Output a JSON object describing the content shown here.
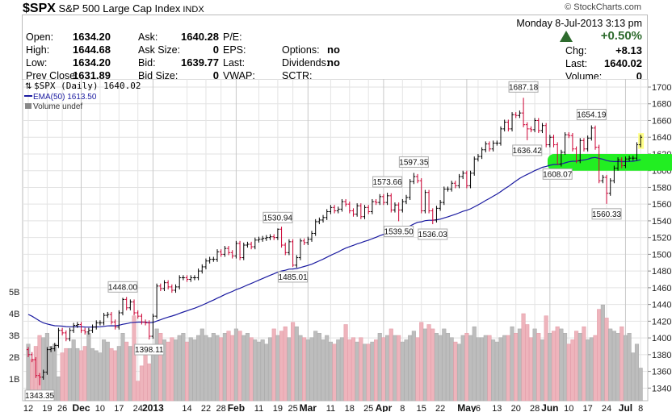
{
  "header": {
    "symbol": "$SPX",
    "name": "S&P 500 Large Cap Index",
    "exchange": "INDX",
    "copyright": "© StockCharts.com",
    "date": "Monday  8-Jul-2013  3:13 pm",
    "pct_change": "+0.50%",
    "fields": {
      "open": {
        "label": "Open:",
        "value": "1634.20"
      },
      "high": {
        "label": "High:",
        "value": "1644.68"
      },
      "low": {
        "label": "Low:",
        "value": "1634.20"
      },
      "prev_close": {
        "label": "Prev Close:",
        "value": "1631.89"
      },
      "ask": {
        "label": "Ask:",
        "value": "1640.28"
      },
      "ask_size": {
        "label": "Ask Size:",
        "value": "0"
      },
      "bid": {
        "label": "Bid:",
        "value": "1639.77"
      },
      "bid_size": {
        "label": "Bid Size:",
        "value": "0"
      },
      "pe": {
        "label": "P/E:"
      },
      "eps": {
        "label": "EPS:"
      },
      "last_l": {
        "label": "Last:"
      },
      "vwap": {
        "label": "VWAP:"
      },
      "options": {
        "label": "Options:",
        "value": "no"
      },
      "dividends": {
        "label": "Dividends:",
        "value": "no"
      },
      "sctr": {
        "label": "SCTR:"
      },
      "chg": {
        "label": "Chg:",
        "value": "+8.13"
      },
      "last": {
        "label": "Last:",
        "value": "1640.02"
      },
      "volume": {
        "label": "Volume:",
        "value": "0"
      }
    }
  },
  "colors": {
    "up": "#000000",
    "down": "#cc0033",
    "ema": "#1a1aa0",
    "vol_up": "#bdbdbd",
    "vol_down": "#eeb4bc",
    "highlight": "#22ee22",
    "last_mark": "#ffff88",
    "pct": "#2e6b2e"
  },
  "chart_data": {
    "type": "ohlc",
    "legend": {
      "price": "$SPX (Daily) 1640.02",
      "ema": "EMA(50) 1613.50",
      "volume": "Volume undef"
    },
    "ylim": [
      1330,
      1705
    ],
    "yticks": [
      1340,
      1360,
      1380,
      1400,
      1420,
      1440,
      1460,
      1480,
      1500,
      1520,
      1540,
      1560,
      1580,
      1600,
      1620,
      1640,
      1660,
      1680,
      1700
    ],
    "volume_ticks": [
      {
        "v": 1,
        "label": "1B"
      },
      {
        "v": 2,
        "label": "2B"
      },
      {
        "v": 3,
        "label": "3B"
      },
      {
        "v": 4,
        "label": "4B"
      },
      {
        "v": 5,
        "label": "5B"
      }
    ],
    "ema_period": 50,
    "ema_start": 1430,
    "closes": [
      1380,
      1374,
      1355,
      1353,
      1359,
      1386,
      1387,
      1391,
      1409,
      1406,
      1399,
      1409,
      1415,
      1416,
      1409,
      1407,
      1409,
      1413,
      1418,
      1418,
      1427,
      1428,
      1419,
      1413,
      1430,
      1446,
      1436,
      1443,
      1430,
      1426,
      1419,
      1418,
      1402,
      1426,
      1462,
      1459,
      1466,
      1461,
      1457,
      1461,
      1472,
      1472,
      1470,
      1472,
      1472,
      1480,
      1485,
      1492,
      1494,
      1494,
      1503,
      1500,
      1507,
      1502,
      1498,
      1513,
      1496,
      1511,
      1512,
      1509,
      1517,
      1518,
      1519,
      1520,
      1521,
      1520,
      1530,
      1511,
      1502,
      1515,
      1487,
      1496,
      1516,
      1514,
      1518,
      1525,
      1539,
      1541,
      1544,
      1551,
      1556,
      1552,
      1554,
      1563,
      1560,
      1552,
      1548,
      1558,
      1545,
      1556,
      1551,
      1563,
      1562,
      1569,
      1562,
      1570,
      1553,
      1559,
      1553,
      1563,
      1568,
      1587,
      1593,
      1588,
      1552,
      1574,
      1552,
      1541,
      1555,
      1562,
      1578,
      1578,
      1585,
      1582,
      1593,
      1597,
      1582,
      1597,
      1614,
      1617,
      1625,
      1632,
      1626,
      1633,
      1633,
      1650,
      1658,
      1650,
      1667,
      1666,
      1669,
      1655,
      1650,
      1649,
      1660,
      1648,
      1654,
      1631,
      1640,
      1631,
      1608,
      1622,
      1643,
      1642,
      1626,
      1612,
      1636,
      1626,
      1639,
      1651,
      1628,
      1588,
      1592,
      1573,
      1588,
      1603,
      1613,
      1606,
      1614,
      1615,
      1615,
      1631,
      1640
    ],
    "volumes": [
      2.6,
      1.9,
      2.5,
      3.0,
      2.9,
      3.1,
      2.5,
      2.6,
      1.1,
      2.2,
      2.4,
      2.4,
      2.8,
      2.4,
      2.3,
      2.5,
      3.1,
      2.4,
      2.3,
      2.2,
      2.8,
      2.7,
      2.4,
      2.3,
      2.5,
      3.1,
      2.7,
      2.5,
      3.9,
      0.9,
      1.6,
      2.1,
      1.7,
      2.4,
      3.3,
      3.1,
      2.8,
      2.7,
      2.9,
      2.8,
      3.0,
      3.1,
      2.7,
      2.9,
      2.8,
      3.0,
      3.3,
      3.0,
      2.9,
      3.1,
      3.0,
      2.9,
      3.1,
      3.2,
      3.0,
      3.3,
      3.2,
      3.0,
      3.1,
      2.9,
      2.8,
      2.7,
      2.8,
      2.6,
      2.9,
      3.3,
      3.0,
      3.2,
      3.4,
      2.9,
      3.6,
      3.4,
      3.0,
      2.9,
      2.8,
      2.9,
      3.2,
      3.1,
      2.8,
      3.0,
      2.7,
      2.6,
      2.8,
      2.9,
      3.5,
      2.8,
      2.9,
      2.7,
      2.9,
      2.6,
      2.6,
      2.7,
      2.8,
      3.1,
      2.9,
      3.0,
      3.3,
      3.0,
      3.0,
      2.7,
      2.8,
      3.0,
      3.2,
      2.9,
      3.6,
      3.3,
      3.5,
      3.3,
      3.1,
      3.0,
      3.3,
      3.1,
      2.9,
      2.7,
      2.6,
      3.0,
      3.1,
      3.0,
      3.4,
      2.9,
      2.9,
      3.0,
      3.0,
      2.8,
      2.7,
      2.9,
      3.0,
      3.0,
      3.4,
      3.1,
      3.3,
      4.0,
      3.5,
      2.9,
      3.3,
      3.1,
      2.8,
      3.9,
      3.1,
      3.2,
      3.4,
      3.3,
      3.1,
      2.6,
      2.8,
      3.2,
      3.1,
      3.4,
      2.8,
      2.9,
      3.0,
      4.2,
      4.4,
      3.8,
      3.3,
      3.2,
      3.1,
      3.4,
      3.0,
      3.1,
      2.2,
      2.6,
      1.5
    ],
    "annotations": [
      {
        "i": 3,
        "price": 1343.35,
        "text": "1343.35",
        "pos": "below"
      },
      {
        "i": 25,
        "price": 1448.0,
        "text": "1448.00",
        "pos": "above"
      },
      {
        "i": 32,
        "price": 1398.11,
        "text": "1398.11",
        "pos": "below"
      },
      {
        "i": 66,
        "price": 1530.94,
        "text": "1530.94",
        "pos": "above"
      },
      {
        "i": 70,
        "price": 1485.01,
        "text": "1485.01",
        "pos": "below"
      },
      {
        "i": 95,
        "price": 1573.66,
        "text": "1573.66",
        "pos": "above"
      },
      {
        "i": 98,
        "price": 1539.5,
        "text": "1539.50",
        "pos": "below"
      },
      {
        "i": 102,
        "price": 1597.35,
        "text": "1597.35",
        "pos": "above"
      },
      {
        "i": 107,
        "price": 1536.03,
        "text": "1536.03",
        "pos": "below"
      },
      {
        "i": 131,
        "price": 1687.18,
        "text": "1687.18",
        "pos": "above"
      },
      {
        "i": 132,
        "price": 1636.42,
        "text": "1636.42",
        "pos": "below"
      },
      {
        "i": 149,
        "price": 1654.19,
        "text": "1654.19",
        "pos": "above"
      },
      {
        "i": 140,
        "price": 1608.07,
        "text": "1608.07",
        "pos": "below"
      },
      {
        "i": 153,
        "price": 1560.33,
        "text": "1560.33",
        "pos": "below"
      }
    ],
    "highlight_band": [
      1600,
      1620
    ],
    "xticks": [
      {
        "i": 0,
        "label": "12"
      },
      {
        "i": 5,
        "label": "19"
      },
      {
        "i": 9,
        "label": "26"
      },
      {
        "i": 14,
        "label": "Dec",
        "bold": true
      },
      {
        "i": 19,
        "label": "10"
      },
      {
        "i": 24,
        "label": "17"
      },
      {
        "i": 29,
        "label": "24"
      },
      {
        "i": 33,
        "label": "2013",
        "bold": true
      },
      {
        "i": 42,
        "label": "14"
      },
      {
        "i": 47,
        "label": "22"
      },
      {
        "i": 51,
        "label": "28"
      },
      {
        "i": 55,
        "label": "Feb",
        "bold": true
      },
      {
        "i": 61,
        "label": "11"
      },
      {
        "i": 66,
        "label": "19"
      },
      {
        "i": 70,
        "label": "25"
      },
      {
        "i": 74,
        "label": "Mar",
        "bold": true
      },
      {
        "i": 80,
        "label": "11"
      },
      {
        "i": 85,
        "label": "18"
      },
      {
        "i": 90,
        "label": "25"
      },
      {
        "i": 94,
        "label": "Apr",
        "bold": true
      },
      {
        "i": 99,
        "label": "8"
      },
      {
        "i": 104,
        "label": "15"
      },
      {
        "i": 109,
        "label": "22"
      },
      {
        "i": 116,
        "label": "May",
        "bold": true
      },
      {
        "i": 119,
        "label": "6"
      },
      {
        "i": 124,
        "label": "13"
      },
      {
        "i": 129,
        "label": "20"
      },
      {
        "i": 134,
        "label": "28"
      },
      {
        "i": 138,
        "label": "Jun",
        "bold": true
      },
      {
        "i": 143,
        "label": "10"
      },
      {
        "i": 148,
        "label": "17"
      },
      {
        "i": 153,
        "label": "24"
      },
      {
        "i": 158,
        "label": "Jul",
        "bold": true
      },
      {
        "i": 162,
        "label": "8"
      }
    ]
  }
}
